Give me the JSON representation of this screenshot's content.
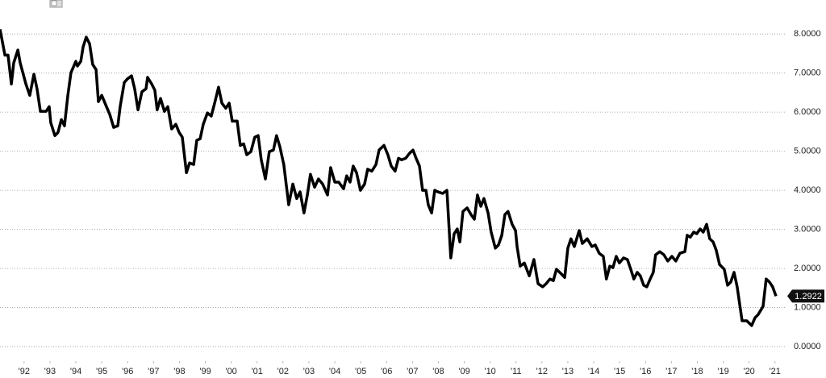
{
  "chart_data": {
    "type": "line",
    "color": "#000000",
    "grid": true,
    "xlim": [
      1991.07,
      2021.6
    ],
    "ylim": [
      -0.37,
      8.87
    ],
    "xticks": [
      {
        "value": 1992,
        "label": "'92"
      },
      {
        "value": 1993,
        "label": "'93"
      },
      {
        "value": 1994,
        "label": "'94"
      },
      {
        "value": 1995,
        "label": "'95"
      },
      {
        "value": 1996,
        "label": "'96"
      },
      {
        "value": 1997,
        "label": "'97"
      },
      {
        "value": 1998,
        "label": "'98"
      },
      {
        "value": 1999,
        "label": "'99"
      },
      {
        "value": 2000,
        "label": "'00"
      },
      {
        "value": 2001,
        "label": "'01"
      },
      {
        "value": 2002,
        "label": "'02"
      },
      {
        "value": 2003,
        "label": "'03"
      },
      {
        "value": 2004,
        "label": "'04"
      },
      {
        "value": 2005,
        "label": "'05"
      },
      {
        "value": 2006,
        "label": "'06"
      },
      {
        "value": 2007,
        "label": "'07"
      },
      {
        "value": 2008,
        "label": "'08"
      },
      {
        "value": 2009,
        "label": "'09"
      },
      {
        "value": 2010,
        "label": "'10"
      },
      {
        "value": 2011,
        "label": "'11"
      },
      {
        "value": 2012,
        "label": "'12"
      },
      {
        "value": 2013,
        "label": "'13"
      },
      {
        "value": 2014,
        "label": "'14"
      },
      {
        "value": 2015,
        "label": "'15"
      },
      {
        "value": 2016,
        "label": "'16"
      },
      {
        "value": 2017,
        "label": "'17"
      },
      {
        "value": 2018,
        "label": "'18"
      },
      {
        "value": 2019,
        "label": "'19"
      },
      {
        "value": 2020,
        "label": "'20"
      },
      {
        "value": 2021,
        "label": "'21"
      }
    ],
    "yticks": [
      {
        "value": 0,
        "label": "0.0000"
      },
      {
        "value": 1,
        "label": "1.0000"
      },
      {
        "value": 2,
        "label": "2.0000"
      },
      {
        "value": 3,
        "label": "3.0000"
      },
      {
        "value": 4,
        "label": "4.0000"
      },
      {
        "value": 5,
        "label": "5.0000"
      },
      {
        "value": 6,
        "label": "6.0000"
      },
      {
        "value": 7,
        "label": "7.0000"
      },
      {
        "value": 8,
        "label": "8.0000"
      }
    ],
    "x": [
      1991.07,
      1991.26,
      1991.38,
      1991.51,
      1991.6,
      1991.76,
      1991.85,
      1992.07,
      1992.22,
      1992.38,
      1992.5,
      1992.63,
      1992.85,
      1992.97,
      1993.03,
      1993.19,
      1993.31,
      1993.44,
      1993.56,
      1993.69,
      1993.81,
      1994.0,
      1994.06,
      1994.19,
      1994.28,
      1994.4,
      1994.53,
      1994.65,
      1994.78,
      1994.87,
      1995.0,
      1995.15,
      1995.31,
      1995.46,
      1995.62,
      1995.71,
      1995.87,
      1995.99,
      1996.15,
      1996.27,
      1996.4,
      1996.55,
      1996.71,
      1996.77,
      1996.93,
      1997.05,
      1997.14,
      1997.27,
      1997.42,
      1997.55,
      1997.7,
      1997.86,
      1997.99,
      1998.11,
      1998.27,
      1998.39,
      1998.55,
      1998.67,
      1998.8,
      1998.92,
      1999.08,
      1999.23,
      1999.39,
      1999.51,
      1999.64,
      1999.79,
      1999.92,
      2000.04,
      2000.23,
      2000.35,
      2000.48,
      2000.6,
      2000.76,
      2000.91,
      2001.04,
      2001.16,
      2001.32,
      2001.47,
      2001.63,
      2001.75,
      2001.88,
      2002.03,
      2002.22,
      2002.38,
      2002.53,
      2002.66,
      2002.81,
      2002.94,
      2003.06,
      2003.22,
      2003.37,
      2003.53,
      2003.72,
      2003.84,
      2004.0,
      2004.15,
      2004.34,
      2004.46,
      2004.59,
      2004.71,
      2004.84,
      2004.99,
      2005.15,
      2005.27,
      2005.43,
      2005.59,
      2005.71,
      2005.9,
      2006.05,
      2006.18,
      2006.33,
      2006.46,
      2006.58,
      2006.74,
      2006.89,
      2007.02,
      2007.14,
      2007.27,
      2007.39,
      2007.52,
      2007.61,
      2007.74,
      2007.86,
      2007.98,
      2008.17,
      2008.33,
      2008.48,
      2008.61,
      2008.73,
      2008.83,
      2008.95,
      2009.11,
      2009.26,
      2009.39,
      2009.51,
      2009.64,
      2009.76,
      2009.92,
      2010.04,
      2010.2,
      2010.32,
      2010.45,
      2010.57,
      2010.69,
      2010.85,
      2010.98,
      2011.04,
      2011.16,
      2011.32,
      2011.51,
      2011.69,
      2011.85,
      2012.03,
      2012.16,
      2012.31,
      2012.44,
      2012.56,
      2012.75,
      2012.88,
      2013.0,
      2013.12,
      2013.25,
      2013.44,
      2013.56,
      2013.75,
      2013.93,
      2014.06,
      2014.21,
      2014.37,
      2014.49,
      2014.62,
      2014.74,
      2014.87,
      2014.99,
      2015.15,
      2015.3,
      2015.43,
      2015.55,
      2015.68,
      2015.8,
      2015.93,
      2016.05,
      2016.18,
      2016.3,
      2016.39,
      2016.55,
      2016.71,
      2016.86,
      2017.02,
      2017.17,
      2017.33,
      2017.52,
      2017.61,
      2017.73,
      2017.86,
      2017.98,
      2018.11,
      2018.23,
      2018.36,
      2018.48,
      2018.61,
      2018.73,
      2018.86,
      2019.04,
      2019.17,
      2019.29,
      2019.42,
      2019.54,
      2019.73,
      2019.91,
      2020.1,
      2020.23,
      2020.35,
      2020.54,
      2020.66,
      2020.79,
      2020.91,
      2021.04
    ],
    "values": [
      8.12,
      7.46,
      7.46,
      6.72,
      7.26,
      7.59,
      7.26,
      6.72,
      6.43,
      6.97,
      6.6,
      6.02,
      6.02,
      6.14,
      5.73,
      5.4,
      5.48,
      5.81,
      5.65,
      6.43,
      7.01,
      7.3,
      7.18,
      7.3,
      7.67,
      7.92,
      7.75,
      7.22,
      7.09,
      6.27,
      6.43,
      6.19,
      5.94,
      5.61,
      5.65,
      6.14,
      6.76,
      6.85,
      6.93,
      6.6,
      6.06,
      6.52,
      6.6,
      6.89,
      6.72,
      6.56,
      6.06,
      6.35,
      6.02,
      6.14,
      5.57,
      5.69,
      5.48,
      5.36,
      4.45,
      4.7,
      4.66,
      5.28,
      5.32,
      5.69,
      5.98,
      5.9,
      6.31,
      6.64,
      6.23,
      6.1,
      6.23,
      5.77,
      5.77,
      5.15,
      5.19,
      4.91,
      4.99,
      5.36,
      5.4,
      4.78,
      4.29,
      4.99,
      5.03,
      5.4,
      5.11,
      4.66,
      3.63,
      4.16,
      3.79,
      3.96,
      3.42,
      3.88,
      4.41,
      4.08,
      4.29,
      4.16,
      3.88,
      4.58,
      4.21,
      4.21,
      4.04,
      4.37,
      4.21,
      4.62,
      4.45,
      4.0,
      4.16,
      4.54,
      4.49,
      4.66,
      5.03,
      5.15,
      4.91,
      4.62,
      4.49,
      4.82,
      4.78,
      4.82,
      4.95,
      5.03,
      4.82,
      4.62,
      4.0,
      4.0,
      3.63,
      3.42,
      4.0,
      3.96,
      3.92,
      4.0,
      2.27,
      2.89,
      3.01,
      2.68,
      3.46,
      3.55,
      3.38,
      3.26,
      3.88,
      3.59,
      3.79,
      3.42,
      2.93,
      2.52,
      2.6,
      2.85,
      3.38,
      3.46,
      3.13,
      2.97,
      2.56,
      2.06,
      2.14,
      1.81,
      2.23,
      1.61,
      1.53,
      1.61,
      1.73,
      1.69,
      1.98,
      1.86,
      1.77,
      2.52,
      2.76,
      2.56,
      2.97,
      2.64,
      2.76,
      2.56,
      2.6,
      2.39,
      2.31,
      1.73,
      2.06,
      2.02,
      2.31,
      2.14,
      2.27,
      2.23,
      1.98,
      1.73,
      1.9,
      1.81,
      1.57,
      1.53,
      1.73,
      1.9,
      2.35,
      2.43,
      2.35,
      2.19,
      2.31,
      2.19,
      2.39,
      2.43,
      2.85,
      2.8,
      2.93,
      2.89,
      3.01,
      2.93,
      3.13,
      2.76,
      2.68,
      2.47,
      2.1,
      1.98,
      1.57,
      1.65,
      1.9,
      1.53,
      0.66,
      0.66,
      0.54,
      0.74,
      0.82,
      1.03,
      1.73,
      1.65,
      1.53,
      1.2922
    ]
  }
}
